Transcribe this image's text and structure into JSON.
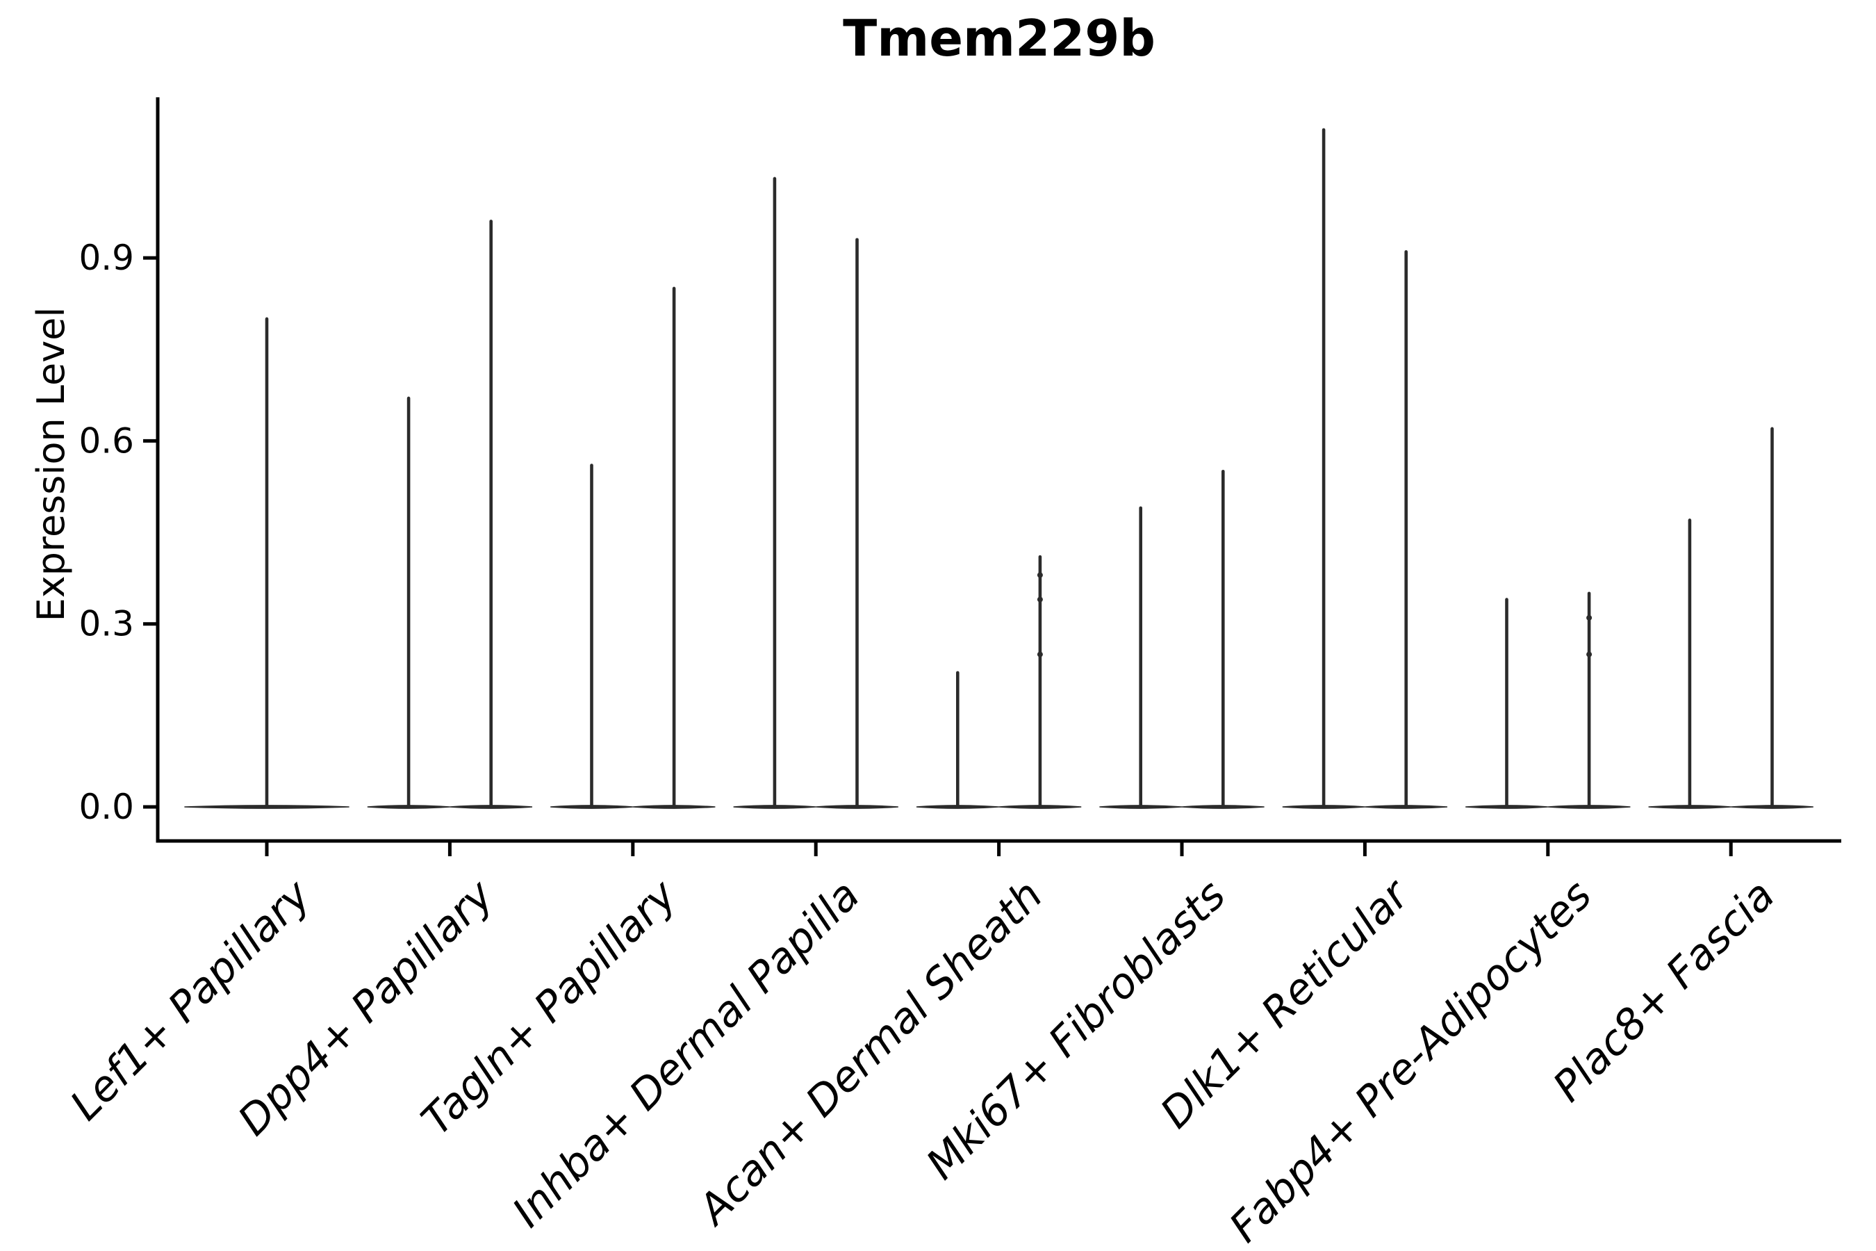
{
  "figure": {
    "background": "#ffffff",
    "axis_color": "#000000",
    "violin_color": "#2b2b2b"
  },
  "chart_data": {
    "type": "violin",
    "title": "Tmem229b",
    "xlabel": "",
    "ylabel": "Expression Level",
    "yticks": [
      "0.0",
      "0.3",
      "0.6",
      "0.9"
    ],
    "ylim": [
      -0.06,
      1.16
    ],
    "grid": false,
    "legend": "none",
    "note": "Seurat-style violin plot: each violin is almost entirely flat at expression 0 (wide thin lens on the baseline) with a single thin density spike rising to the max expression value; groups 2-9 contain two side-by-side violins, group 1 a single full-width violin.",
    "groups": [
      {
        "label": "Lef1+ Papillary",
        "violins": [
          {
            "max": 0.8
          }
        ]
      },
      {
        "label": "Dpp4+ Papillary",
        "violins": [
          {
            "max": 0.67
          },
          {
            "max": 0.96
          }
        ]
      },
      {
        "label": "Tagln+ Papillary",
        "violins": [
          {
            "max": 0.56
          },
          {
            "max": 0.85
          }
        ]
      },
      {
        "label": "Inhba+ Dermal Papilla",
        "violins": [
          {
            "max": 1.03
          },
          {
            "max": 0.93
          }
        ]
      },
      {
        "label": "Acan+ Dermal Sheath",
        "violins": [
          {
            "max": 0.22
          },
          {
            "max": 0.41,
            "knots": [
              0.38,
              0.34,
              0.25
            ]
          }
        ]
      },
      {
        "label": "Mki67+ Fibroblasts",
        "violins": [
          {
            "max": 0.49
          },
          {
            "max": 0.55
          }
        ]
      },
      {
        "label": "Dlk1+ Reticular",
        "violins": [
          {
            "max": 1.11
          },
          {
            "max": 0.91
          }
        ]
      },
      {
        "label": "Fabp4+ Pre-Adipocytes",
        "violins": [
          {
            "max": 0.34
          },
          {
            "max": 0.35,
            "knots": [
              0.31,
              0.25
            ]
          }
        ]
      },
      {
        "label": "Plac8+ Fascia",
        "violins": [
          {
            "max": 0.47
          },
          {
            "max": 0.62
          }
        ]
      }
    ]
  }
}
